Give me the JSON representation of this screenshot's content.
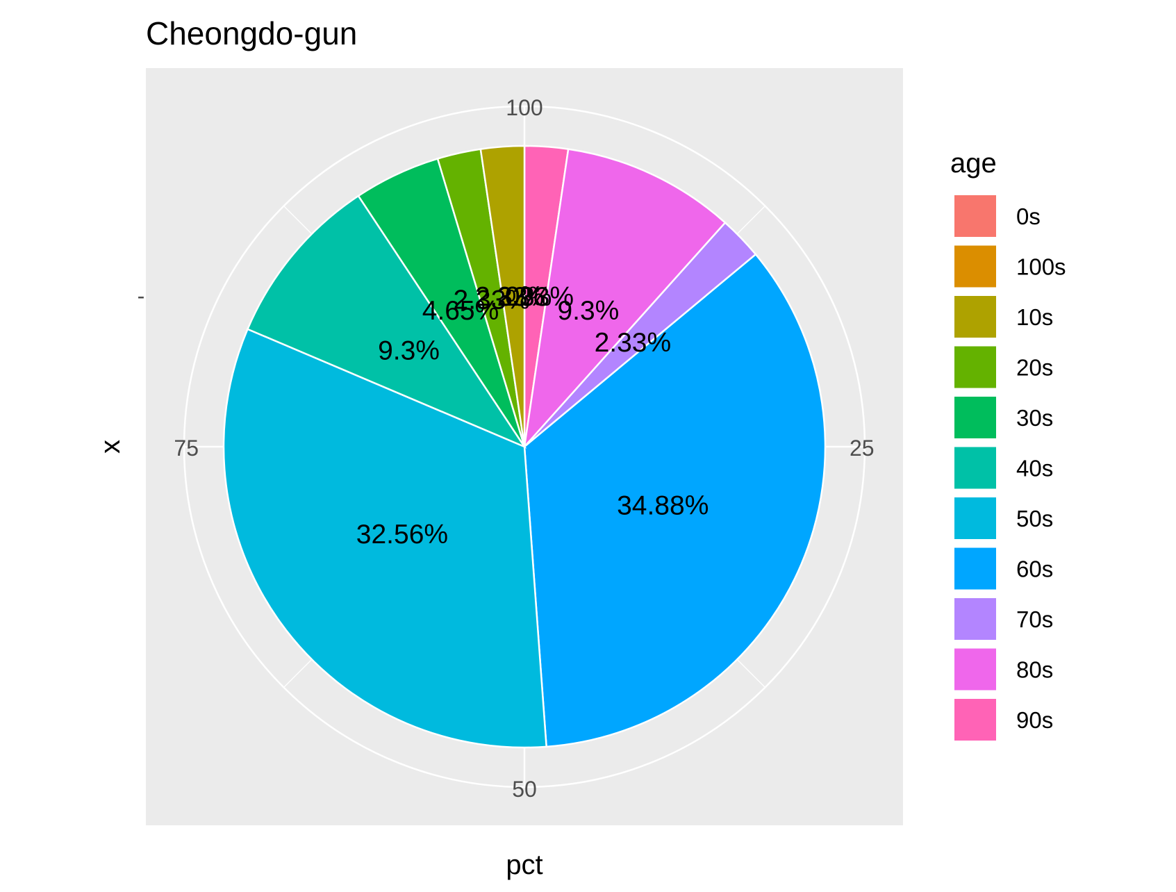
{
  "chart_data": {
    "type": "pie",
    "title": "Cheongdo-gun",
    "xlabel": "pct",
    "ylabel": "x",
    "y_tick_label": "-",
    "angular_ticks": [
      "100",
      "25",
      "50",
      "75"
    ],
    "legend": {
      "title": "age",
      "placement": "right"
    },
    "categories": [
      "0s",
      "100s",
      "10s",
      "20s",
      "30s",
      "40s",
      "50s",
      "60s",
      "70s",
      "80s",
      "90s"
    ],
    "values": [
      0,
      0,
      2.33,
      2.33,
      4.65,
      9.3,
      32.56,
      34.88,
      2.33,
      9.3,
      2.33
    ],
    "data_labels": [
      "0%",
      "0%",
      "2.33%",
      "2.33%",
      "4.65%",
      "9.3%",
      "32.56%",
      "34.88%",
      "2.33%",
      "9.3%",
      "2.33%"
    ],
    "colors": [
      "#F8766D",
      "#DB8E00",
      "#AEA200",
      "#64B200",
      "#00BD5C",
      "#00C1A7",
      "#00BADE",
      "#00A6FF",
      "#B385FF",
      "#EF67EB",
      "#FF63B6"
    ],
    "grid": true
  }
}
